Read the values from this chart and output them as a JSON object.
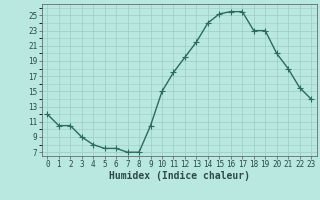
{
  "x": [
    0,
    1,
    2,
    3,
    4,
    5,
    6,
    7,
    8,
    9,
    10,
    11,
    12,
    13,
    14,
    15,
    16,
    17,
    18,
    19,
    20,
    21,
    22,
    23
  ],
  "y": [
    12,
    10.5,
    10.5,
    9,
    8,
    7.5,
    7.5,
    7,
    7,
    10.5,
    15,
    17.5,
    19.5,
    21.5,
    24,
    25.2,
    25.5,
    25.5,
    23,
    23,
    20,
    18,
    15.5,
    14
  ],
  "line_color": "#2d6b5e",
  "marker": "+",
  "marker_size": 4,
  "bg_color": "#b8e8e0",
  "grid_color": "#9cccc4",
  "xlabel": "Humidex (Indice chaleur)",
  "xlim": [
    -0.5,
    23.5
  ],
  "ylim": [
    6.5,
    26.5
  ],
  "yticks": [
    7,
    9,
    11,
    13,
    15,
    17,
    19,
    21,
    23,
    25
  ],
  "xticks": [
    0,
    1,
    2,
    3,
    4,
    5,
    6,
    7,
    8,
    9,
    10,
    11,
    12,
    13,
    14,
    15,
    16,
    17,
    18,
    19,
    20,
    21,
    22,
    23
  ],
  "tick_fontsize": 5.5,
  "xlabel_fontsize": 7,
  "line_width": 1.0,
  "marker_edge_width": 0.8
}
